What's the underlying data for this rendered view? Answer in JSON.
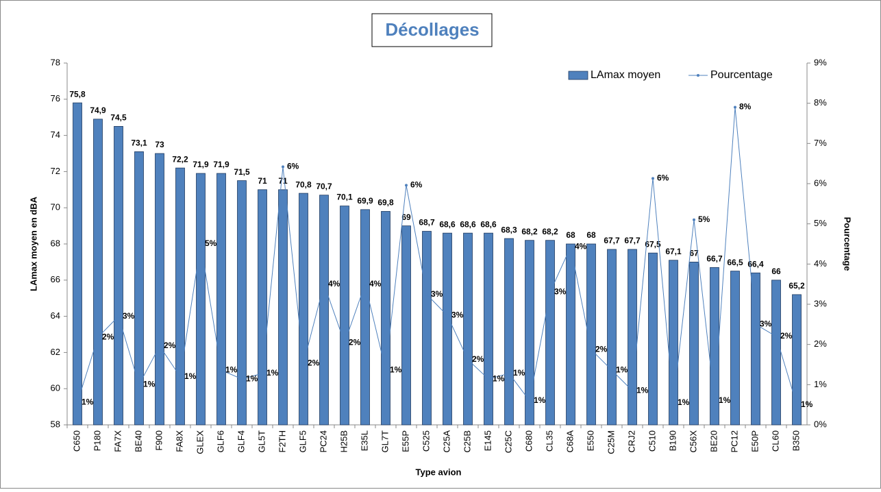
{
  "chart_data": {
    "type": "bar",
    "title": "Décollages",
    "x_label": "Type avion",
    "y_label": "LAmax moyen en dBA",
    "y2_label": "Pourcentage",
    "categories": [
      "C650",
      "P180",
      "FA7X",
      "BE40",
      "F900",
      "FA8X",
      "GLEX",
      "GLF6",
      "GLF4",
      "GL5T",
      "F2TH",
      "GLF5",
      "PC24",
      "H25B",
      "E35L",
      "GL7T",
      "E55P",
      "C525",
      "C25A",
      "C25B",
      "E145",
      "C25C",
      "C680",
      "CL35",
      "C68A",
      "E550",
      "C25M",
      "CRJ2",
      "C510",
      "B190",
      "C56X",
      "BE20",
      "PC12",
      "E50P",
      "CL60",
      "B350"
    ],
    "series": [
      {
        "name": "LAmax moyen",
        "type": "bar",
        "color": "#4f81bd",
        "values": [
          75.8,
          74.9,
          74.5,
          73.1,
          73,
          72.2,
          71.9,
          71.9,
          71.5,
          71,
          71,
          70.8,
          70.7,
          70.1,
          69.9,
          69.8,
          69,
          68.7,
          68.6,
          68.6,
          68.6,
          68.3,
          68.2,
          68.2,
          68,
          68,
          67.7,
          67.7,
          67.5,
          67.1,
          67,
          66.7,
          66.5,
          66.4,
          66,
          65.2
        ],
        "value_labels": [
          "75,8",
          "74,9",
          "74,5",
          "73,1",
          "73",
          "72,2",
          "71,9",
          "71,9",
          "71,5",
          "71",
          "71",
          "70,8",
          "70,7",
          "70,1",
          "69,9",
          "69,8",
          "69",
          "68,7",
          "68,6",
          "68,6",
          "68,6",
          "68,3",
          "68,2",
          "68,2",
          "68",
          "68",
          "67,7",
          "67,7",
          "67,5",
          "67,1",
          "67",
          "66,7",
          "66,5",
          "66,4",
          "66",
          "65,2"
        ]
      },
      {
        "name": "Pourcentage",
        "type": "line",
        "axis": "y2",
        "color": "#4f81bd",
        "values": [
          0.56,
          2.18,
          2.7,
          1.0,
          1.96,
          1.2,
          4.5,
          1.36,
          1.14,
          1.28,
          6.42,
          1.53,
          3.5,
          2.04,
          3.5,
          1.36,
          5.96,
          3.24,
          2.72,
          1.62,
          1.14,
          1.28,
          0.6,
          3.3,
          4.43,
          1.87,
          1.36,
          0.85,
          6.13,
          0.55,
          5.1,
          0.6,
          7.9,
          2.5,
          2.2,
          0.5
        ],
        "value_labels": [
          "1%",
          "2%",
          "3%",
          "1%",
          "2%",
          "1%",
          "5%",
          "1%",
          "1%",
          "1%",
          "6%",
          "2%",
          "4%",
          "2%",
          "4%",
          "1%",
          "6%",
          "3%",
          "3%",
          "2%",
          "1%",
          "1%",
          "1%",
          "3%",
          "4%",
          "2%",
          "1%",
          "1%",
          "6%",
          "1%",
          "5%",
          "1%",
          "8%",
          "3%",
          "2%",
          "1%"
        ]
      }
    ],
    "ylim": [
      58,
      78
    ],
    "yticks": [
      58,
      60,
      62,
      64,
      66,
      68,
      70,
      72,
      74,
      76,
      78
    ],
    "y2lim": [
      0,
      9
    ],
    "y2ticks": [
      {
        "value": 0,
        "label": "0%"
      },
      {
        "value": 1,
        "label": "1%"
      },
      {
        "value": 2,
        "label": "2%"
      },
      {
        "value": 3,
        "label": "3%"
      },
      {
        "value": 4,
        "label": "4%"
      },
      {
        "value": 5,
        "label": "5%"
      },
      {
        "value": 6,
        "label": "6%"
      },
      {
        "value": 7,
        "label": "7%"
      },
      {
        "value": 8,
        "label": "8%"
      },
      {
        "value": 9,
        "label": "9%"
      }
    ],
    "legend": "top-right"
  }
}
